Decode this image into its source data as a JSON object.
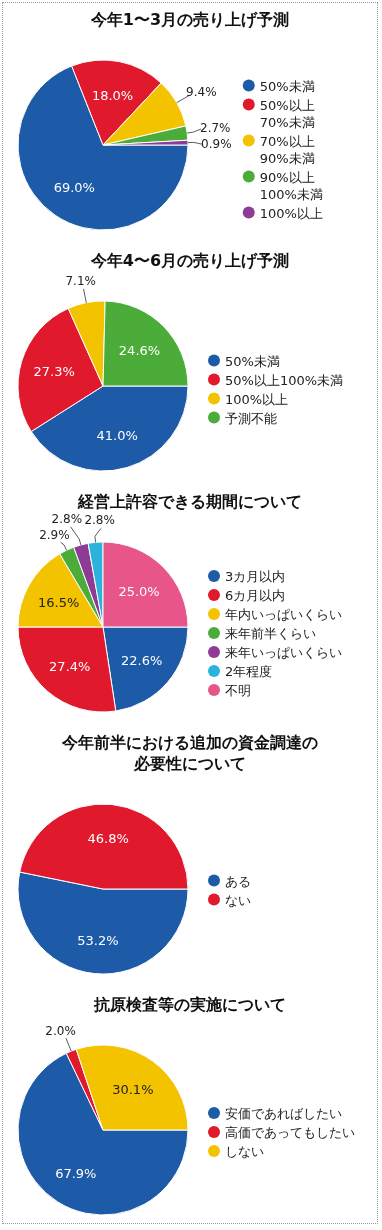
{
  "chart_data": [
    {
      "type": "pie",
      "title": "今年1〜3月の売り上げ予測",
      "categories": [
        "50%未満",
        "50%以上\n70%未満",
        "70%以上\n90%未満",
        "90%以上\n100%未満",
        "100%以上"
      ],
      "values": [
        69.0,
        18.0,
        9.4,
        2.7,
        0.9
      ],
      "value_labels": [
        "69.0%",
        "18.0%",
        "9.4%",
        "2.7%",
        "0.9%"
      ],
      "colors": [
        "#1d5aa8",
        "#e0192d",
        "#f3c300",
        "#4cac3a",
        "#8e3b96"
      ],
      "legend": "right"
    },
    {
      "type": "pie",
      "title": "今年4〜6月の売り上げ予測",
      "categories": [
        "50%未満",
        "50%以上100%未満",
        "100%以上",
        "予測不能"
      ],
      "values": [
        41.0,
        27.3,
        7.1,
        24.6
      ],
      "value_labels": [
        "41.0%",
        "27.3%",
        "7.1%",
        "24.6%"
      ],
      "colors": [
        "#1d5aa8",
        "#e0192d",
        "#f3c300",
        "#4cac3a"
      ],
      "legend": "right"
    },
    {
      "type": "pie",
      "title": "経営上許容できる期間について",
      "categories": [
        "3カ月以内",
        "6カ月以内",
        "年内いっぱいくらい",
        "来年前半くらい",
        "来年いっぱいくらい",
        "2年程度",
        "不明"
      ],
      "values": [
        22.6,
        27.4,
        16.5,
        2.9,
        2.8,
        2.8,
        25.0
      ],
      "value_labels": [
        "22.6%",
        "27.4%",
        "16.5%",
        "2.9%",
        "2.8%",
        "2.8%",
        "25.0%"
      ],
      "colors": [
        "#1d5aa8",
        "#e0192d",
        "#f3c300",
        "#4cac3a",
        "#8e3b96",
        "#2bb3de",
        "#e7558a"
      ],
      "legend": "right"
    },
    {
      "type": "pie",
      "title": "今年前半における追加の資金調達の必要性について",
      "categories": [
        "ある",
        "ない"
      ],
      "values": [
        53.2,
        46.8
      ],
      "value_labels": [
        "53.2%",
        "46.8%"
      ],
      "colors": [
        "#1d5aa8",
        "#e0192d"
      ],
      "legend": "right"
    },
    {
      "type": "pie",
      "title": "抗原検査等の実施について",
      "categories": [
        "安価であればしたい",
        "高価であってもしたい",
        "しない"
      ],
      "values": [
        67.9,
        2.0,
        30.1
      ],
      "value_labels": [
        "67.9%",
        "2.0%",
        "30.1%"
      ],
      "colors": [
        "#1d5aa8",
        "#e0192d",
        "#f3c300"
      ],
      "legend": "right"
    }
  ]
}
